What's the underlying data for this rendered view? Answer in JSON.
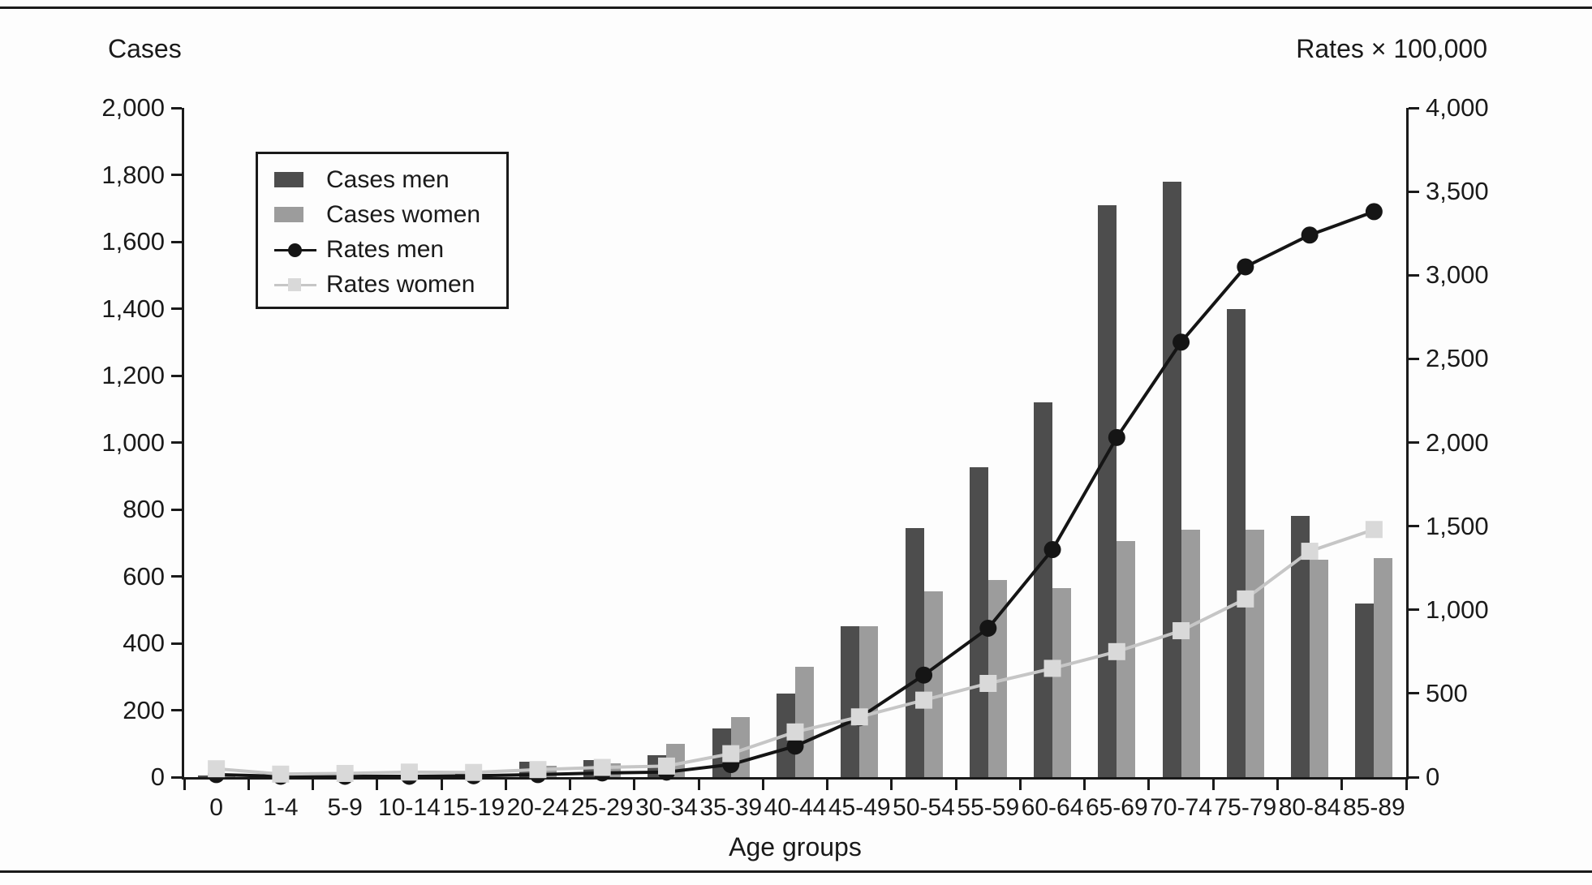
{
  "figure": {
    "left_axis_title": "Cases",
    "right_axis_title": "Rates × 100,000",
    "x_axis_title": "Age groups"
  },
  "legend": {
    "items": [
      {
        "label": "Cases men",
        "swatch": "bar-dark-gray"
      },
      {
        "label": "Cases women",
        "swatch": "bar-light-gray"
      },
      {
        "label": "Rates men",
        "swatch": "line-black-circle"
      },
      {
        "label": "Rates women",
        "swatch": "line-gray-square"
      }
    ]
  },
  "colors": {
    "cases_men": "#4d4d4d",
    "cases_women": "#9c9c9c",
    "rates_men": "#151515",
    "rates_women_line": "#c6c6c6",
    "rates_women_marker": "#d9d9d9",
    "axis": "#1a1a1a"
  },
  "chart_data": {
    "type": "bar",
    "subtype": "grouped-bars-with-overlaid-lines",
    "categories": [
      "0",
      "1-4",
      "5-9",
      "10-14",
      "15-19",
      "20-24",
      "25-29",
      "30-34",
      "35-39",
      "40-44",
      "45-49",
      "50-54",
      "55-59",
      "60-64",
      "65-69",
      "70-74",
      "75-79",
      "80-84",
      "85-89"
    ],
    "series": [
      {
        "name": "Cases men",
        "type": "bar",
        "axis": "left",
        "marker": "none",
        "values": [
          5,
          4,
          4,
          5,
          10,
          45,
          52,
          65,
          145,
          250,
          450,
          745,
          925,
          1120,
          1710,
          1780,
          1400,
          780,
          520
        ]
      },
      {
        "name": "Cases women",
        "type": "bar",
        "axis": "left",
        "marker": "none",
        "values": [
          10,
          4,
          4,
          5,
          10,
          35,
          42,
          100,
          180,
          330,
          450,
          555,
          590,
          565,
          705,
          740,
          740,
          650,
          655
        ]
      },
      {
        "name": "Rates men",
        "type": "line",
        "axis": "right",
        "marker": "circle",
        "values": [
          15,
          5,
          5,
          5,
          8,
          15,
          25,
          30,
          75,
          185,
          355,
          610,
          890,
          1360,
          2030,
          2600,
          3050,
          3240,
          3380
        ]
      },
      {
        "name": "Rates women",
        "type": "line",
        "axis": "right",
        "marker": "square",
        "values": [
          50,
          18,
          22,
          30,
          28,
          45,
          58,
          66,
          140,
          270,
          360,
          460,
          560,
          650,
          750,
          875,
          1065,
          1350,
          1480
        ]
      }
    ],
    "left_axis": {
      "title": "Cases",
      "min": 0,
      "max": 2000,
      "tick_step": 200,
      "tick_labels": [
        "0",
        "200",
        "400",
        "600",
        "800",
        "1,000",
        "1,200",
        "1,400",
        "1,600",
        "1,800",
        "2,000"
      ]
    },
    "right_axis": {
      "title": "Rates × 100,000",
      "min": 0,
      "max": 4000,
      "tick_step": 500,
      "tick_labels": [
        "0",
        "500",
        "1,000",
        "1,500",
        "2,000",
        "2,500",
        "3,000",
        "3,500",
        "4,000"
      ]
    },
    "x_axis": {
      "title": "Age groups"
    },
    "legend_position": "upper-left-inside",
    "grid": false
  }
}
